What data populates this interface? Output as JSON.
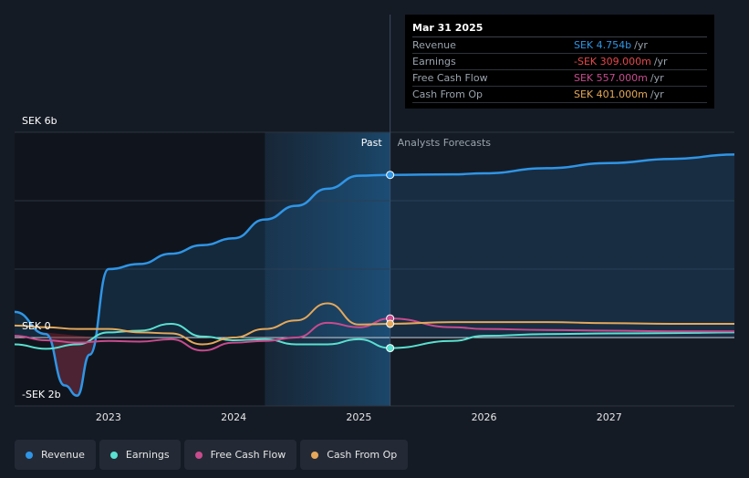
{
  "chart_data": {
    "type": "line",
    "title": "",
    "xlabel": "",
    "ylabel": "",
    "x_ticks": [
      "2023",
      "2024",
      "2025",
      "2026",
      "2027"
    ],
    "y_labels": [
      {
        "label": "SEK 6b",
        "value": 6
      },
      {
        "label": "SEK 0",
        "value": 0
      },
      {
        "label": "-SEK 2b",
        "value": -2
      }
    ],
    "ylim": [
      -2,
      6
    ],
    "xlim": [
      2022.25,
      2028.0
    ],
    "past_label": "Past",
    "forecast_label": "Analysts Forecasts",
    "divider_x": 2025.25,
    "series": [
      {
        "name": "Revenue",
        "color": "#2f95e6",
        "points": [
          [
            2022.25,
            0.75
          ],
          [
            2022.5,
            0.1
          ],
          [
            2022.65,
            -1.4
          ],
          [
            2022.75,
            -1.7
          ],
          [
            2022.85,
            -0.5
          ],
          [
            2023.0,
            2.0
          ],
          [
            2023.25,
            2.15
          ],
          [
            2023.5,
            2.45
          ],
          [
            2023.75,
            2.7
          ],
          [
            2024.0,
            2.9
          ],
          [
            2024.25,
            3.45
          ],
          [
            2024.5,
            3.85
          ],
          [
            2024.75,
            4.35
          ],
          [
            2025.0,
            4.73
          ],
          [
            2025.25,
            4.754
          ],
          [
            2025.75,
            4.77
          ],
          [
            2026.0,
            4.8
          ],
          [
            2026.5,
            4.95
          ],
          [
            2027.0,
            5.1
          ],
          [
            2027.5,
            5.22
          ],
          [
            2028.0,
            5.35
          ]
        ]
      },
      {
        "name": "Earnings",
        "color": "#59e0d0",
        "points": [
          [
            2022.25,
            -0.2
          ],
          [
            2022.5,
            -0.33
          ],
          [
            2022.75,
            -0.2
          ],
          [
            2023.0,
            0.15
          ],
          [
            2023.25,
            0.2
          ],
          [
            2023.5,
            0.4
          ],
          [
            2023.75,
            0.03
          ],
          [
            2024.0,
            -0.08
          ],
          [
            2024.25,
            -0.05
          ],
          [
            2024.5,
            -0.2
          ],
          [
            2024.75,
            -0.2
          ],
          [
            2025.0,
            -0.05
          ],
          [
            2025.25,
            -0.309
          ],
          [
            2025.75,
            -0.1
          ],
          [
            2026.0,
            0.05
          ],
          [
            2026.5,
            0.1
          ],
          [
            2027.0,
            0.12
          ],
          [
            2027.5,
            0.13
          ],
          [
            2028.0,
            0.15
          ]
        ]
      },
      {
        "name": "Free Cash Flow",
        "color": "#c84b8e",
        "points": [
          [
            2022.25,
            0.05
          ],
          [
            2022.5,
            -0.08
          ],
          [
            2022.75,
            -0.15
          ],
          [
            2023.0,
            -0.1
          ],
          [
            2023.25,
            -0.12
          ],
          [
            2023.5,
            -0.05
          ],
          [
            2023.75,
            -0.38
          ],
          [
            2024.0,
            -0.15
          ],
          [
            2024.25,
            -0.1
          ],
          [
            2024.5,
            0.0
          ],
          [
            2024.75,
            0.43
          ],
          [
            2025.0,
            0.3
          ],
          [
            2025.25,
            0.557
          ],
          [
            2025.75,
            0.3
          ],
          [
            2026.0,
            0.25
          ],
          [
            2026.5,
            0.22
          ],
          [
            2027.0,
            0.2
          ],
          [
            2027.5,
            0.18
          ],
          [
            2028.0,
            0.18
          ]
        ]
      },
      {
        "name": "Cash From Op",
        "color": "#e5a85a",
        "points": [
          [
            2022.25,
            0.35
          ],
          [
            2022.5,
            0.3
          ],
          [
            2022.75,
            0.25
          ],
          [
            2023.0,
            0.25
          ],
          [
            2023.25,
            0.15
          ],
          [
            2023.5,
            0.12
          ],
          [
            2023.75,
            -0.2
          ],
          [
            2024.0,
            0.0
          ],
          [
            2024.25,
            0.25
          ],
          [
            2024.5,
            0.5
          ],
          [
            2024.75,
            1.0
          ],
          [
            2025.0,
            0.38
          ],
          [
            2025.25,
            0.401
          ],
          [
            2025.75,
            0.45
          ],
          [
            2026.0,
            0.45
          ],
          [
            2026.5,
            0.45
          ],
          [
            2027.0,
            0.42
          ],
          [
            2027.5,
            0.4
          ],
          [
            2028.0,
            0.4
          ]
        ]
      }
    ]
  },
  "tooltip": {
    "date": "Mar 31 2025",
    "rows": [
      {
        "name": "Revenue",
        "value": "SEK 4.754b",
        "unit": "/yr",
        "color": "#2f95e6"
      },
      {
        "name": "Earnings",
        "value": "-SEK 309.000m",
        "unit": "/yr",
        "color": "#e8474a"
      },
      {
        "name": "Free Cash Flow",
        "value": "SEK 557.000m",
        "unit": "/yr",
        "color": "#c84b8e"
      },
      {
        "name": "Cash From Op",
        "value": "SEK 401.000m",
        "unit": "/yr",
        "color": "#e5a85a"
      }
    ]
  },
  "legend": [
    {
      "label": "Revenue",
      "color": "#2f95e6"
    },
    {
      "label": "Earnings",
      "color": "#59e0d0"
    },
    {
      "label": "Free Cash Flow",
      "color": "#c84b8e"
    },
    {
      "label": "Cash From Op",
      "color": "#e5a85a"
    }
  ]
}
